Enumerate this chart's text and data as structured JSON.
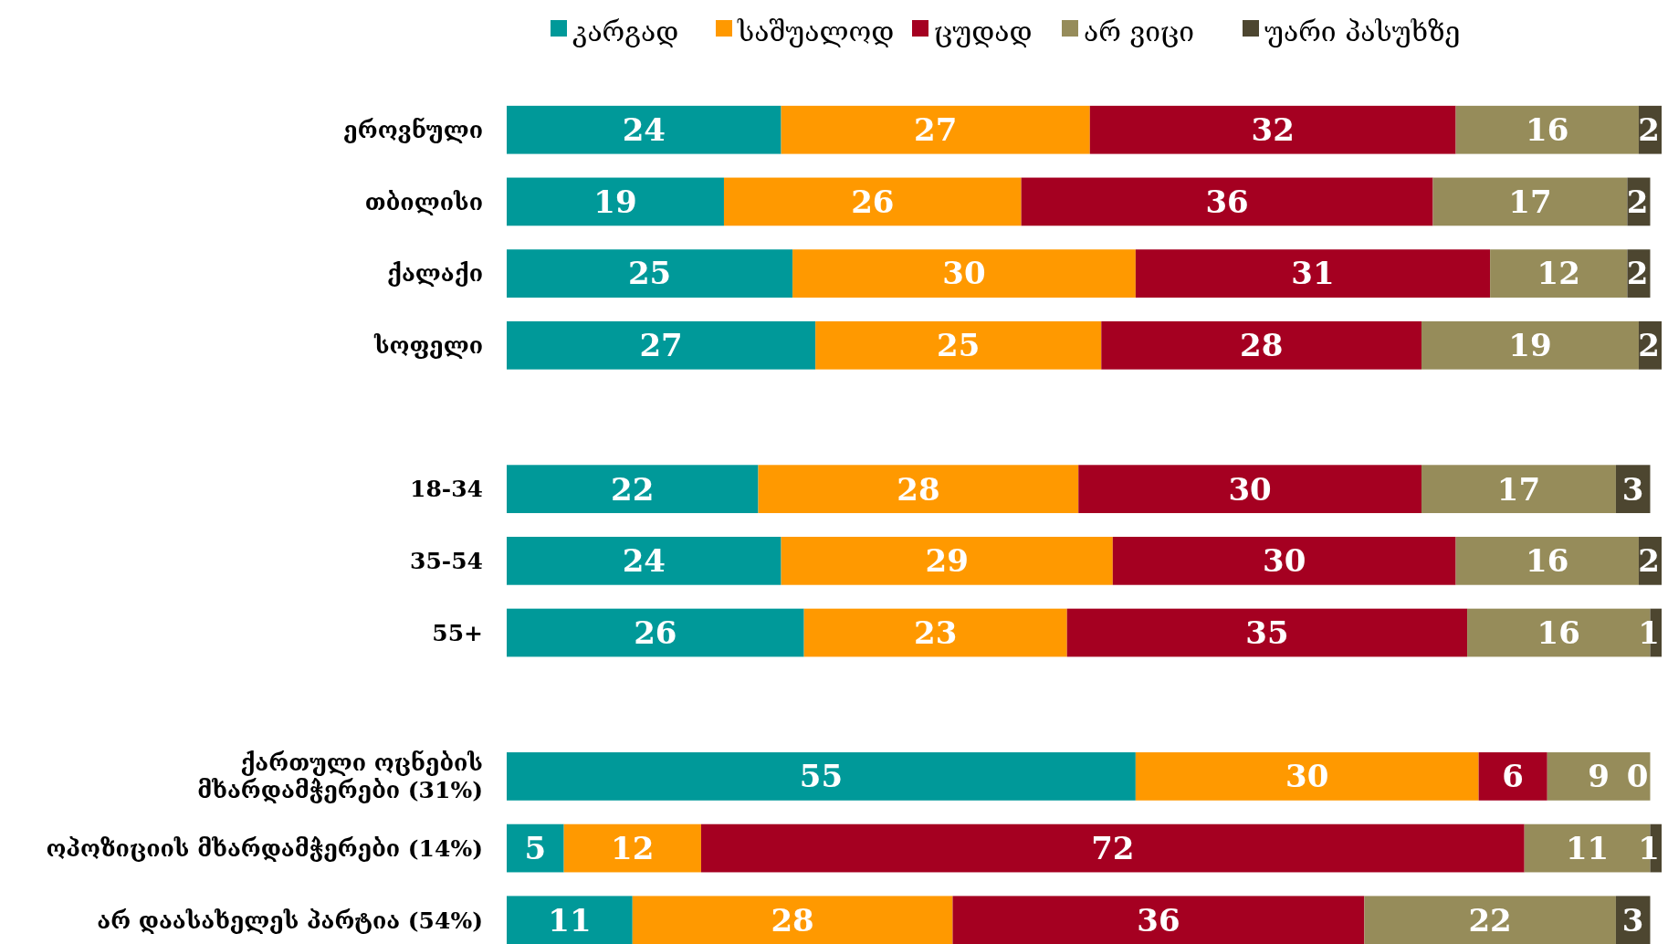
{
  "chart_data": {
    "type": "bar",
    "orientation": "horizontal",
    "stacked": true,
    "data_labels": true,
    "legend": "top",
    "categories": [
      "ეროვნული",
      "თბილისი",
      "ქალაქი",
      "სოფელი",
      null,
      "18-34",
      "35-54",
      "55+",
      null,
      "ქართული ოცნების მხარდამჭერები (31%)",
      "ოპოზიციის მხარდამჭერები (14%)",
      "არ დაასახელეს პარტია  (54%)"
    ],
    "series": [
      {
        "name": "კარგად",
        "color": "#009999",
        "values": [
          24,
          19,
          25,
          27,
          null,
          22,
          24,
          26,
          null,
          55,
          5,
          11
        ]
      },
      {
        "name": "საშუალოდ",
        "color": "#ff9900",
        "values": [
          27,
          26,
          30,
          25,
          null,
          28,
          29,
          23,
          null,
          30,
          12,
          28
        ]
      },
      {
        "name": "ცუდად",
        "color": "#a50021",
        "values": [
          32,
          36,
          31,
          28,
          null,
          30,
          30,
          35,
          null,
          6,
          72,
          36
        ]
      },
      {
        "name": "არ ვიცი",
        "color": "#968c5a",
        "values": [
          16,
          17,
          12,
          19,
          null,
          17,
          16,
          16,
          null,
          9,
          11,
          22
        ]
      },
      {
        "name": "უარი პასუხზე",
        "color": "#4d4630",
        "values": [
          2,
          2,
          2,
          2,
          null,
          3,
          2,
          1,
          null,
          0,
          1,
          3
        ]
      }
    ]
  }
}
